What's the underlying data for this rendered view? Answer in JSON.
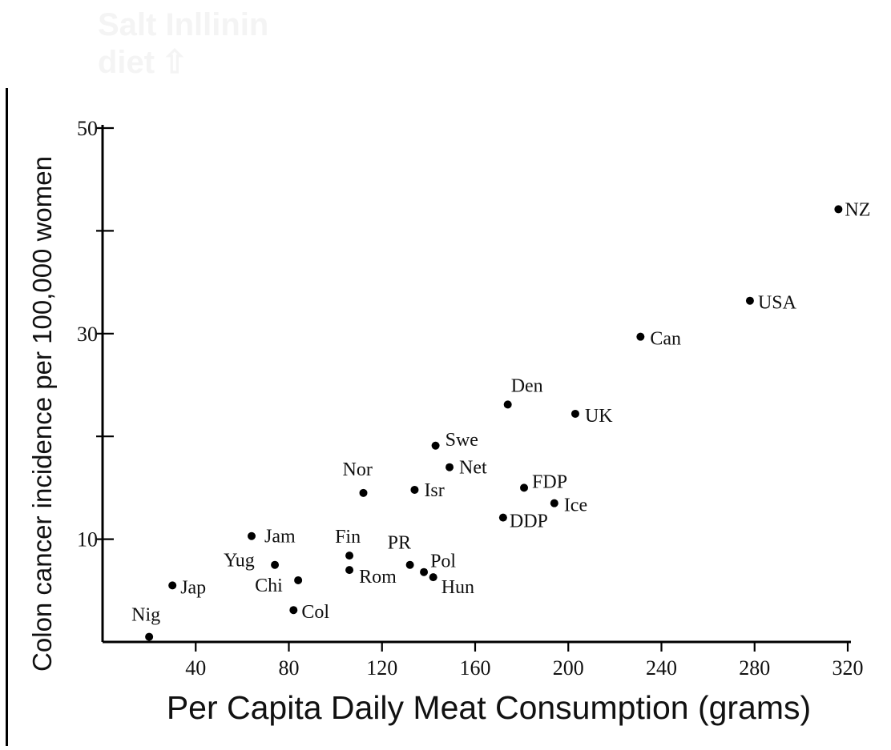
{
  "header": {
    "ghost_title_line1": "Salt Inllinin",
    "ghost_title_line2": "diet"
  },
  "chart_data": {
    "type": "scatter",
    "title": "",
    "xlabel": "Per Capita Daily Meat Consumption (grams)",
    "ylabel": "Colon cancer incidence per 100,000 women",
    "xlim": [
      0,
      320
    ],
    "ylim": [
      0,
      50
    ],
    "x_ticks": [
      40,
      80,
      120,
      160,
      200,
      240,
      280,
      320
    ],
    "x_tick_labels": [
      "40",
      "80",
      "120",
      "160",
      "200",
      "240",
      "280",
      "320"
    ],
    "y_ticks": [
      10,
      20,
      30,
      40,
      50
    ],
    "y_tick_labels": [
      "10",
      "",
      "30",
      "",
      "50"
    ],
    "grid": false,
    "points": [
      {
        "label": "Nig",
        "x": 20,
        "y": 0.5
      },
      {
        "label": "Jap",
        "x": 30,
        "y": 5.5
      },
      {
        "label": "Jam",
        "x": 64,
        "y": 10.3
      },
      {
        "label": "Yug",
        "x": 74,
        "y": 7.5
      },
      {
        "label": "Chi",
        "x": 84,
        "y": 6.0
      },
      {
        "label": "Col",
        "x": 82,
        "y": 3.1
      },
      {
        "label": "Fin",
        "x": 106,
        "y": 8.4
      },
      {
        "label": "Rom",
        "x": 106,
        "y": 7.0
      },
      {
        "label": "Nor",
        "x": 112,
        "y": 14.5
      },
      {
        "label": "PR",
        "x": 132,
        "y": 7.5
      },
      {
        "label": "Pol",
        "x": 138,
        "y": 6.8
      },
      {
        "label": "Hun",
        "x": 142,
        "y": 6.3
      },
      {
        "label": "Isr",
        "x": 134,
        "y": 14.8
      },
      {
        "label": "Swe",
        "x": 143,
        "y": 19.1
      },
      {
        "label": "Net",
        "x": 149,
        "y": 17.0
      },
      {
        "label": "FDP",
        "x": 181,
        "y": 15.0
      },
      {
        "label": "Ice",
        "x": 194,
        "y": 13.5
      },
      {
        "label": "DDP",
        "x": 172,
        "y": 12.1
      },
      {
        "label": "Den",
        "x": 174,
        "y": 23.1
      },
      {
        "label": "UK",
        "x": 203,
        "y": 22.2
      },
      {
        "label": "Can",
        "x": 231,
        "y": 29.7
      },
      {
        "label": "USA",
        "x": 278,
        "y": 33.2
      },
      {
        "label": "NZ",
        "x": 316,
        "y": 42.1
      }
    ]
  }
}
